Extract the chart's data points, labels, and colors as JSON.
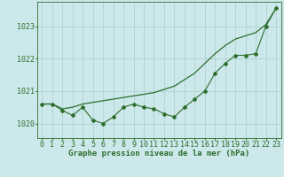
{
  "title": "Graphe pression niveau de la mer (hPa)",
  "background_color": "#cce8ea",
  "grid_color": "#aacccc",
  "line_color": "#2d6e2d",
  "x_labels": [
    "0",
    "1",
    "2",
    "3",
    "4",
    "5",
    "6",
    "7",
    "8",
    "9",
    "10",
    "11",
    "12",
    "13",
    "14",
    "15",
    "16",
    "17",
    "18",
    "19",
    "20",
    "21",
    "22",
    "23"
  ],
  "hours": [
    0,
    1,
    2,
    3,
    4,
    5,
    6,
    7,
    8,
    9,
    10,
    11,
    12,
    13,
    14,
    15,
    16,
    17,
    18,
    19,
    20,
    21,
    22,
    23
  ],
  "series1": [
    1020.6,
    1020.6,
    1020.45,
    1020.5,
    1020.6,
    1020.65,
    1020.7,
    1020.75,
    1020.8,
    1020.85,
    1020.9,
    1020.95,
    1021.05,
    1021.15,
    1021.35,
    1021.55,
    1021.85,
    1022.15,
    1022.4,
    1022.6,
    1022.7,
    1022.8,
    1023.05,
    1023.55
  ],
  "series2": [
    1020.6,
    1020.6,
    1020.4,
    1020.25,
    1020.5,
    1020.1,
    1020.0,
    1020.2,
    1020.5,
    1020.6,
    1020.5,
    1020.45,
    1020.3,
    1020.2,
    1020.5,
    1020.75,
    1021.0,
    1021.55,
    1021.85,
    1022.1,
    1022.1,
    1022.15,
    1023.0,
    1023.55
  ],
  "ylim": [
    1019.55,
    1023.75
  ],
  "yticks": [
    1020,
    1021,
    1022,
    1023
  ],
  "tick_fontsize": 6.0
}
